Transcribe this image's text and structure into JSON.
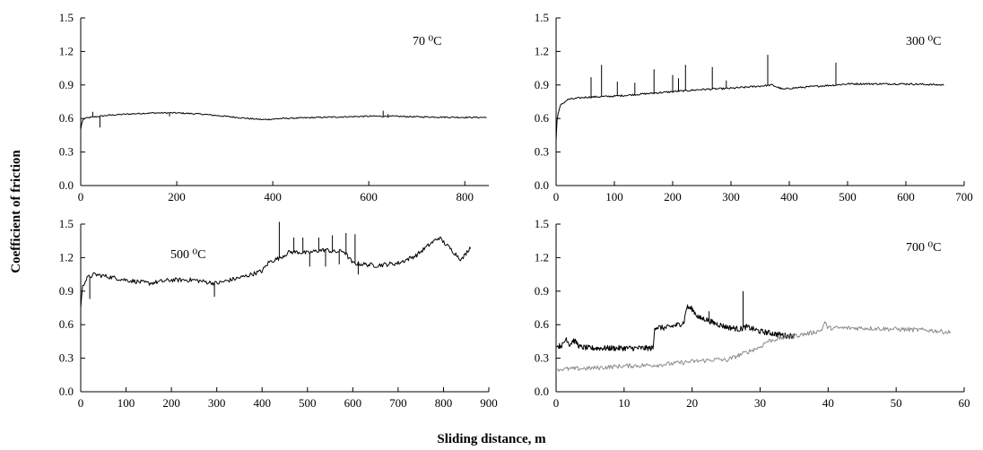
{
  "figure": {
    "ylabel": "Coefficient of friction",
    "xlabel": "Sliding distance, m"
  },
  "chart_data": [
    {
      "type": "line",
      "annotation": "70 ⁰C",
      "xlim": [
        0,
        850
      ],
      "ylim": [
        0,
        1.5
      ],
      "xticks": [
        0,
        200,
        400,
        600,
        800
      ],
      "yticks": [
        "0.0",
        "0.3",
        "0.6",
        "0.9",
        "1.2",
        "1.5"
      ],
      "series": [
        {
          "color": "#000000",
          "points": [
            [
              0,
              0.5
            ],
            [
              3,
              0.58
            ],
            [
              8,
              0.6
            ],
            [
              20,
              0.61
            ],
            [
              40,
              0.62
            ],
            [
              60,
              0.63
            ],
            [
              100,
              0.64
            ],
            [
              150,
              0.65
            ],
            [
              200,
              0.65
            ],
            [
              250,
              0.64
            ],
            [
              300,
              0.62
            ],
            [
              350,
              0.6
            ],
            [
              380,
              0.59
            ],
            [
              420,
              0.6
            ],
            [
              500,
              0.61
            ],
            [
              600,
              0.62
            ],
            [
              650,
              0.62
            ],
            [
              700,
              0.615
            ],
            [
              800,
              0.61
            ],
            [
              845,
              0.61
            ]
          ],
          "noise": 0.006,
          "spikes": [
            [
              25,
              0.66
            ],
            [
              40,
              0.52
            ],
            [
              185,
              0.62
            ],
            [
              630,
              0.67
            ],
            [
              640,
              0.64
            ]
          ]
        }
      ]
    },
    {
      "type": "line",
      "annotation": "300 ⁰C",
      "xlim": [
        0,
        700
      ],
      "ylim": [
        0,
        1.5
      ],
      "xticks": [
        0,
        100,
        200,
        300,
        400,
        500,
        600,
        700
      ],
      "yticks": [
        "0.0",
        "0.3",
        "0.6",
        "0.9",
        "1.2",
        "1.5"
      ],
      "series": [
        {
          "color": "#000000",
          "points": [
            [
              0,
              0.4
            ],
            [
              2,
              0.62
            ],
            [
              8,
              0.72
            ],
            [
              20,
              0.77
            ],
            [
              50,
              0.79
            ],
            [
              100,
              0.8
            ],
            [
              150,
              0.82
            ],
            [
              200,
              0.84
            ],
            [
              250,
              0.86
            ],
            [
              300,
              0.87
            ],
            [
              350,
              0.89
            ],
            [
              370,
              0.9
            ],
            [
              390,
              0.86
            ],
            [
              400,
              0.87
            ],
            [
              450,
              0.89
            ],
            [
              480,
              0.9
            ],
            [
              500,
              0.91
            ],
            [
              600,
              0.91
            ],
            [
              665,
              0.9
            ]
          ],
          "noise": 0.008,
          "spikes": [
            [
              60,
              0.97
            ],
            [
              78,
              1.08
            ],
            [
              105,
              0.93
            ],
            [
              135,
              0.92
            ],
            [
              168,
              1.04
            ],
            [
              200,
              0.99
            ],
            [
              210,
              0.96
            ],
            [
              222,
              1.08
            ],
            [
              268,
              1.06
            ],
            [
              292,
              0.94
            ],
            [
              363,
              1.17
            ],
            [
              480,
              1.1
            ]
          ]
        }
      ]
    },
    {
      "type": "line",
      "annotation": "500 ⁰C",
      "xlim": [
        0,
        900
      ],
      "ylim": [
        0,
        1.5
      ],
      "xticks": [
        0,
        100,
        200,
        300,
        400,
        500,
        600,
        700,
        800,
        900
      ],
      "yticks": [
        "0.0",
        "0.3",
        "0.6",
        "0.9",
        "1.2",
        "1.5"
      ],
      "series": [
        {
          "color": "#000000",
          "points": [
            [
              0,
              0.75
            ],
            [
              4,
              0.95
            ],
            [
              15,
              1.02
            ],
            [
              30,
              1.05
            ],
            [
              60,
              1.03
            ],
            [
              100,
              1.0
            ],
            [
              150,
              0.97
            ],
            [
              200,
              1.0
            ],
            [
              250,
              1.0
            ],
            [
              280,
              0.98
            ],
            [
              300,
              0.97
            ],
            [
              330,
              1.0
            ],
            [
              360,
              1.03
            ],
            [
              400,
              1.08
            ],
            [
              415,
              1.16
            ],
            [
              440,
              1.2
            ],
            [
              460,
              1.25
            ],
            [
              480,
              1.25
            ],
            [
              500,
              1.24
            ],
            [
              520,
              1.26
            ],
            [
              540,
              1.27
            ],
            [
              560,
              1.25
            ],
            [
              580,
              1.26
            ],
            [
              600,
              1.15
            ],
            [
              650,
              1.13
            ],
            [
              700,
              1.15
            ],
            [
              740,
              1.22
            ],
            [
              770,
              1.32
            ],
            [
              790,
              1.38
            ],
            [
              810,
              1.3
            ],
            [
              840,
              1.18
            ],
            [
              860,
              1.3
            ]
          ],
          "noise": 0.02,
          "spikes": [
            [
              20,
              0.83
            ],
            [
              295,
              0.85
            ],
            [
              438,
              1.52
            ],
            [
              470,
              1.38
            ],
            [
              490,
              1.38
            ],
            [
              505,
              1.12
            ],
            [
              525,
              1.38
            ],
            [
              540,
              1.12
            ],
            [
              555,
              1.4
            ],
            [
              570,
              1.14
            ],
            [
              585,
              1.42
            ],
            [
              605,
              1.41
            ],
            [
              612,
              1.05
            ]
          ]
        }
      ]
    },
    {
      "type": "line",
      "annotation": "700 ⁰C",
      "xlim": [
        0,
        60
      ],
      "ylim": [
        0,
        1.5
      ],
      "xticks": [
        0,
        10,
        20,
        30,
        40,
        50,
        60
      ],
      "yticks": [
        "0.0",
        "0.3",
        "0.6",
        "0.9",
        "1.2",
        "1.5"
      ],
      "series": [
        {
          "color": "#000000",
          "points": [
            [
              0,
              0.4
            ],
            [
              1,
              0.42
            ],
            [
              1.5,
              0.48
            ],
            [
              2,
              0.42
            ],
            [
              2.5,
              0.46
            ],
            [
              3,
              0.44
            ],
            [
              3.5,
              0.4
            ],
            [
              5,
              0.39
            ],
            [
              10,
              0.39
            ],
            [
              14.3,
              0.39
            ],
            [
              14.5,
              0.58
            ],
            [
              16,
              0.57
            ],
            [
              18,
              0.6
            ],
            [
              18.8,
              0.62
            ],
            [
              19.2,
              0.76
            ],
            [
              20,
              0.74
            ],
            [
              21,
              0.66
            ],
            [
              22,
              0.65
            ],
            [
              23,
              0.62
            ],
            [
              25,
              0.58
            ],
            [
              27,
              0.56
            ],
            [
              28,
              0.58
            ],
            [
              30,
              0.54
            ],
            [
              32,
              0.52
            ],
            [
              34,
              0.5
            ],
            [
              35,
              0.5
            ]
          ],
          "noise": 0.025,
          "spikes": [
            [
              27.5,
              0.9
            ],
            [
              22.5,
              0.72
            ]
          ]
        },
        {
          "color": "#8a8a8a",
          "points": [
            [
              0,
              0.2
            ],
            [
              5,
              0.21
            ],
            [
              10,
              0.23
            ],
            [
              15,
              0.24
            ],
            [
              20,
              0.27
            ],
            [
              24,
              0.29
            ],
            [
              25,
              0.28
            ],
            [
              27,
              0.33
            ],
            [
              30,
              0.4
            ],
            [
              31,
              0.45
            ],
            [
              33,
              0.48
            ],
            [
              35,
              0.5
            ],
            [
              37,
              0.52
            ],
            [
              39,
              0.55
            ],
            [
              39.5,
              0.62
            ],
            [
              40,
              0.57
            ],
            [
              45,
              0.57
            ],
            [
              50,
              0.56
            ],
            [
              55,
              0.55
            ],
            [
              58,
              0.53
            ]
          ],
          "noise": 0.02,
          "spikes": [
            [
              39.5,
              0.63
            ]
          ]
        }
      ]
    }
  ]
}
